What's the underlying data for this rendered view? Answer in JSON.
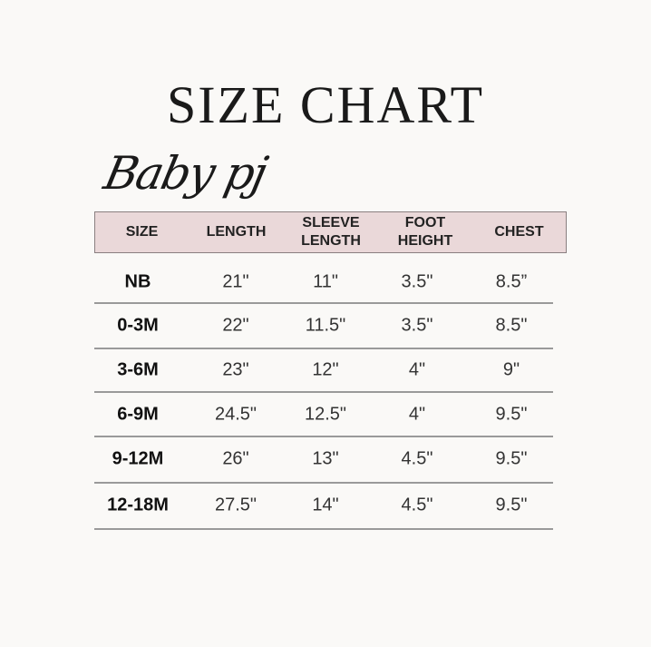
{
  "title": "SIZE CHART",
  "subtitle": "Baby pj",
  "colors": {
    "header_bg": "#ead8d9",
    "background": "#faf9f7"
  },
  "table": {
    "headers": [
      "SIZE",
      "LENGTH",
      "SLEEVE\nLENGTH",
      "FOOT\nHEIGHT",
      "CHEST"
    ],
    "rows": [
      [
        "NB",
        "21\"",
        "11\"",
        "3.5\"",
        "8.5”"
      ],
      [
        "0-3M",
        "22\"",
        "11.5\"",
        "3.5\"",
        "8.5\""
      ],
      [
        "3-6M",
        "23\"",
        "12\"",
        "4\"",
        "9\""
      ],
      [
        "6-9M",
        "24.5\"",
        "12.5\"",
        "4\"",
        "9.5\""
      ],
      [
        "9-12M",
        "26\"",
        "13\"",
        "4.5\"",
        "9.5\""
      ],
      [
        "12-18M",
        "27.5\"",
        "14\"",
        "4.5\"",
        "9.5\""
      ]
    ]
  }
}
